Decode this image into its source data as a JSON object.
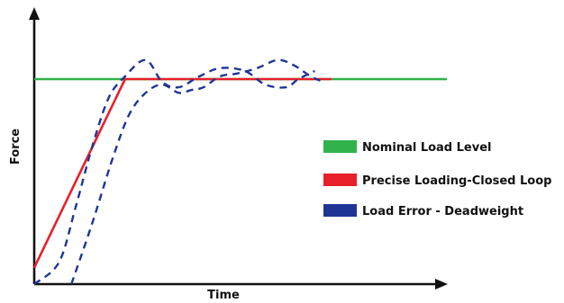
{
  "chart_data": {
    "type": "line",
    "xlabel": "Time",
    "ylabel": "Force",
    "grid": false,
    "legend_placement": "right",
    "series": [
      {
        "name": "Nominal Load Level",
        "color": "#2fb34a",
        "line_style": "solid",
        "points": [
          [
            0,
            75
          ],
          [
            100,
            75
          ]
        ]
      },
      {
        "name": "Precise Loading-Closed Loop",
        "color": "#e8202a",
        "line_style": "solid",
        "points": [
          [
            0,
            6
          ],
          [
            22,
            75
          ],
          [
            72,
            75
          ]
        ]
      },
      {
        "name": "Load Error - Deadweight",
        "color": "#1f3596",
        "line_style": "dashed",
        "points": [
          [
            0,
            0
          ],
          [
            6,
            8
          ],
          [
            10,
            28
          ],
          [
            14,
            50
          ],
          [
            18,
            68
          ],
          [
            22,
            76
          ],
          [
            27,
            82
          ],
          [
            31,
            74
          ],
          [
            35,
            72
          ],
          [
            40,
            76
          ],
          [
            45,
            79
          ],
          [
            51,
            78
          ],
          [
            56,
            73
          ],
          [
            61,
            72
          ],
          [
            64,
            75
          ],
          [
            68,
            78
          ]
        ]
      },
      {
        "name": "Load Error - Deadweight",
        "color": "#1f3596",
        "line_style": "dashed",
        "points": [
          [
            9,
            0
          ],
          [
            14,
            22
          ],
          [
            19,
            46
          ],
          [
            23,
            62
          ],
          [
            27,
            70
          ],
          [
            31,
            73
          ],
          [
            35,
            70
          ],
          [
            38,
            71
          ],
          [
            41,
            72
          ],
          [
            45,
            76
          ],
          [
            49,
            77
          ],
          [
            54,
            79
          ],
          [
            59,
            82
          ],
          [
            63,
            80
          ],
          [
            67,
            76
          ],
          [
            70,
            74
          ]
        ]
      }
    ],
    "legend": [
      {
        "label": "Nominal Load Level",
        "color": "#2fb34a"
      },
      {
        "label": "Precise Loading-Closed Loop",
        "color": "#e8202a"
      },
      {
        "label": "Load Error - Deadweight",
        "color": "#1f3596"
      }
    ]
  }
}
